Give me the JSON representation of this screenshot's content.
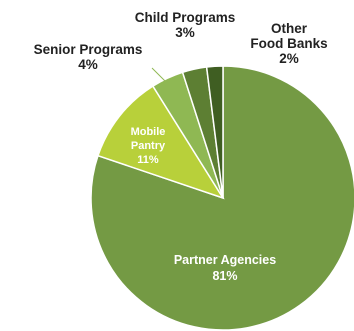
{
  "chart_data": {
    "type": "pie",
    "title": "",
    "slices": [
      {
        "label": "Partner Agencies",
        "value": 81,
        "value_label": "81%",
        "color": "#749a44"
      },
      {
        "label": "Mobile Pantry",
        "value": 11,
        "value_label": "11%",
        "color": "#b8d03a"
      },
      {
        "label": "Senior Programs",
        "value": 4,
        "value_label": "4%",
        "color": "#8fb853"
      },
      {
        "label": "Child Programs",
        "value": 3,
        "value_label": "3%",
        "color": "#5d7f33"
      },
      {
        "label": "Other Food Banks",
        "value": 2,
        "value_label": "2%",
        "color": "#3f5e22"
      }
    ],
    "legend": "none",
    "leader_line_color": "#8fb853"
  }
}
